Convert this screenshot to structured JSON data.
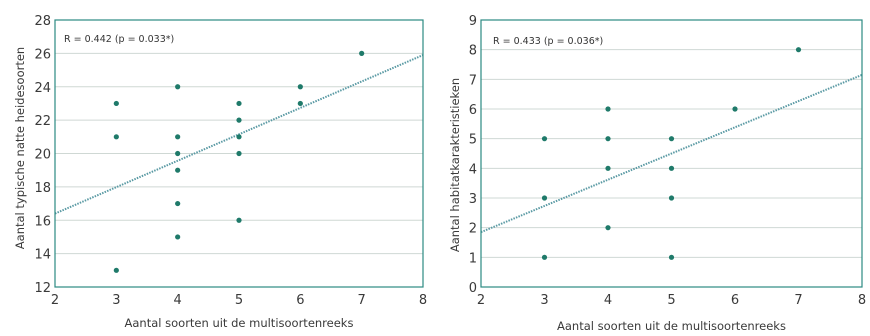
{
  "chart_data": [
    {
      "type": "scatter",
      "xlabel": "Aantal soorten uit de multisoortenreeks",
      "ylabel": "Aantal typische natte heidesoorten",
      "annotation": "R = 0.442 (p = 0.033*)",
      "xlim": [
        2,
        8
      ],
      "ylim": [
        12,
        28
      ],
      "xticks": [
        "2",
        "3",
        "4",
        "5",
        "6",
        "7",
        "8"
      ],
      "yticks": [
        "12",
        "14",
        "16",
        "18",
        "20",
        "22",
        "24",
        "26",
        "28"
      ],
      "points": [
        {
          "x": 3,
          "y": 13
        },
        {
          "x": 3,
          "y": 21
        },
        {
          "x": 3,
          "y": 23
        },
        {
          "x": 4,
          "y": 15
        },
        {
          "x": 4,
          "y": 17
        },
        {
          "x": 4,
          "y": 19
        },
        {
          "x": 4,
          "y": 20
        },
        {
          "x": 4,
          "y": 21
        },
        {
          "x": 4,
          "y": 24
        },
        {
          "x": 5,
          "y": 16
        },
        {
          "x": 5,
          "y": 20
        },
        {
          "x": 5,
          "y": 21
        },
        {
          "x": 5,
          "y": 22
        },
        {
          "x": 5,
          "y": 23
        },
        {
          "x": 6,
          "y": 23
        },
        {
          "x": 6,
          "y": 24
        },
        {
          "x": 7,
          "y": 26
        }
      ],
      "trendline": {
        "x": [
          2,
          8
        ],
        "y": [
          16.4,
          25.9
        ]
      },
      "grid": true,
      "colors": {
        "point": "#1f7a6a",
        "trend": "#5a9aa4",
        "grid": "#cfd8d4",
        "frame": "#2b8a82"
      }
    },
    {
      "type": "scatter",
      "xlabel": "Aantal soorten uit de multisoortenreeks",
      "ylabel": "Aantal habitatkarakteristieken",
      "annotation": "R = 0.433 (p = 0.036*)",
      "xlim": [
        2,
        8
      ],
      "ylim": [
        0,
        9
      ],
      "xticks": [
        "2",
        "3",
        "4",
        "5",
        "6",
        "7",
        "8"
      ],
      "yticks": [
        "0",
        "1",
        "2",
        "3",
        "4",
        "5",
        "6",
        "7",
        "8",
        "9"
      ],
      "points": [
        {
          "x": 3,
          "y": 1
        },
        {
          "x": 3,
          "y": 3
        },
        {
          "x": 3,
          "y": 5
        },
        {
          "x": 4,
          "y": 2
        },
        {
          "x": 4,
          "y": 4
        },
        {
          "x": 4,
          "y": 5
        },
        {
          "x": 4,
          "y": 6
        },
        {
          "x": 5,
          "y": 1
        },
        {
          "x": 5,
          "y": 3
        },
        {
          "x": 5,
          "y": 4
        },
        {
          "x": 5,
          "y": 5
        },
        {
          "x": 6,
          "y": 6
        },
        {
          "x": 7,
          "y": 8
        }
      ],
      "trendline": {
        "x": [
          2,
          8
        ],
        "y": [
          1.85,
          7.15
        ]
      },
      "grid": true,
      "colors": {
        "point": "#1f7a6a",
        "trend": "#5a9aa4",
        "grid": "#cfd8d4",
        "frame": "#2b8a82"
      }
    }
  ]
}
